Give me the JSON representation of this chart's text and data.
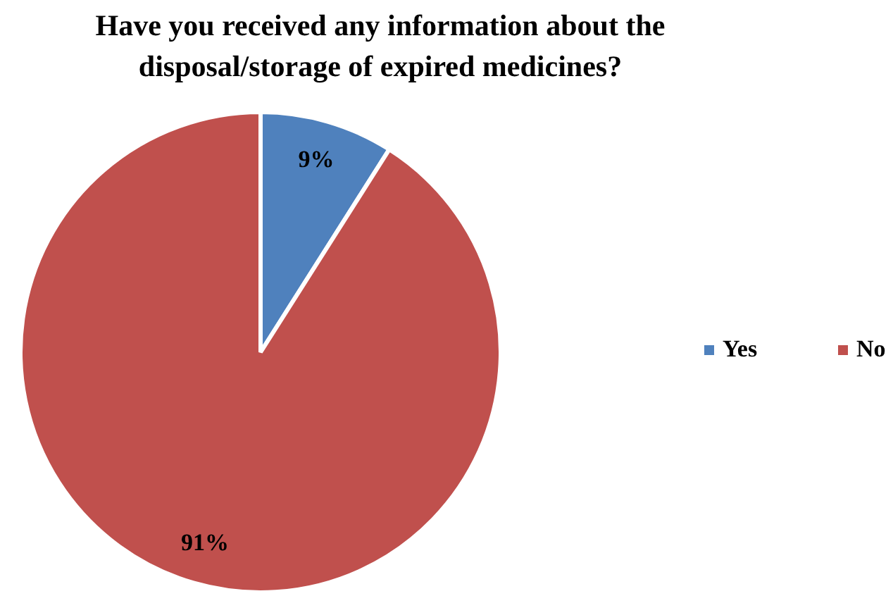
{
  "chart_data": {
    "type": "pie",
    "title": "Have you received any information about the disposal/storage of expired medicines?",
    "categories": [
      "Yes",
      "No"
    ],
    "values": [
      9,
      91
    ],
    "value_labels": [
      "9%",
      "91%"
    ],
    "colors": [
      "#4f81bd",
      "#c0504d"
    ],
    "legend": "right"
  }
}
